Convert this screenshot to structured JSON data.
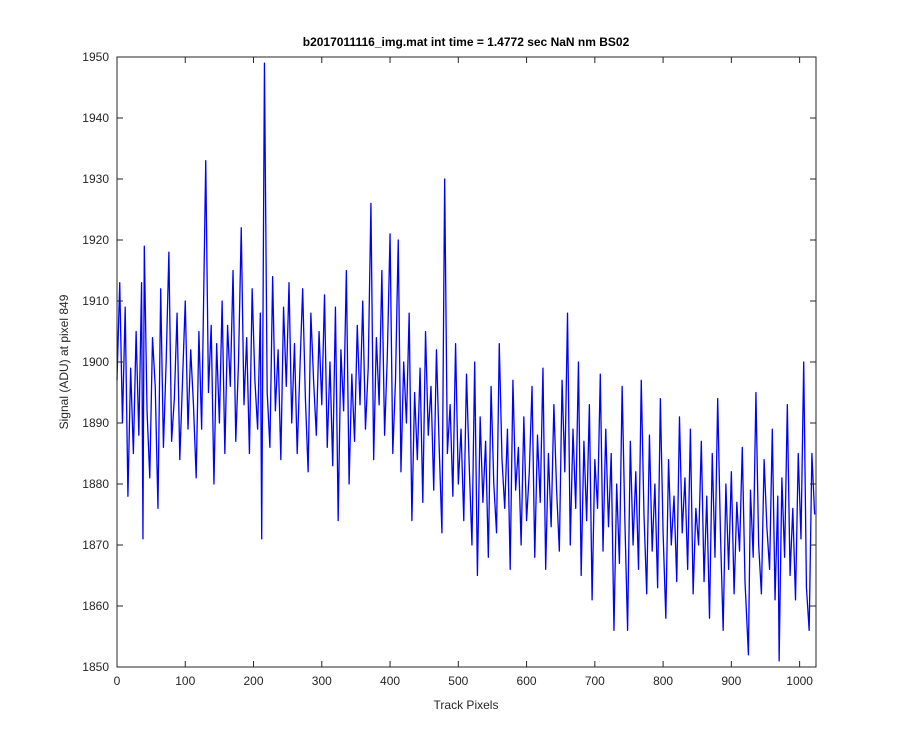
{
  "chart_data": {
    "type": "line",
    "title": "b2017011116_img.mat int time = 1.4772 sec  NaN nm BS02",
    "xlabel": "Track Pixels",
    "ylabel": "Signal (ADU) at pixel 849",
    "xlim": [
      0,
      1024
    ],
    "ylim": [
      1850,
      1950
    ],
    "xticks": [
      0,
      100,
      200,
      300,
      400,
      500,
      600,
      700,
      800,
      900,
      1000
    ],
    "yticks": [
      1850,
      1860,
      1870,
      1880,
      1890,
      1900,
      1910,
      1920,
      1930,
      1940,
      1950
    ],
    "grid": false,
    "x": [
      0,
      4,
      8,
      12,
      16,
      20,
      24,
      28,
      32,
      36,
      38,
      40,
      44,
      48,
      52,
      56,
      60,
      64,
      68,
      72,
      76,
      80,
      84,
      88,
      92,
      96,
      100,
      104,
      108,
      112,
      116,
      120,
      124,
      130,
      134,
      138,
      142,
      146,
      150,
      154,
      158,
      162,
      166,
      170,
      174,
      178,
      182,
      186,
      190,
      194,
      198,
      202,
      206,
      210,
      212,
      216,
      220,
      224,
      228,
      232,
      236,
      240,
      244,
      248,
      252,
      256,
      260,
      264,
      268,
      272,
      276,
      280,
      284,
      288,
      292,
      296,
      300,
      304,
      308,
      312,
      316,
      320,
      324,
      328,
      332,
      336,
      340,
      344,
      348,
      352,
      356,
      360,
      364,
      368,
      372,
      376,
      380,
      384,
      388,
      392,
      396,
      400,
      404,
      408,
      412,
      416,
      420,
      424,
      428,
      432,
      436,
      440,
      444,
      448,
      452,
      456,
      460,
      464,
      468,
      472,
      476,
      480,
      484,
      488,
      492,
      496,
      500,
      504,
      508,
      512,
      516,
      520,
      524,
      528,
      532,
      536,
      540,
      544,
      548,
      552,
      556,
      560,
      564,
      568,
      572,
      576,
      580,
      584,
      588,
      592,
      596,
      600,
      604,
      608,
      612,
      616,
      620,
      624,
      628,
      632,
      636,
      640,
      644,
      648,
      652,
      656,
      660,
      664,
      668,
      672,
      676,
      680,
      684,
      688,
      692,
      696,
      700,
      704,
      708,
      712,
      716,
      720,
      724,
      728,
      732,
      736,
      740,
      744,
      748,
      752,
      756,
      760,
      764,
      768,
      772,
      776,
      780,
      784,
      788,
      792,
      796,
      800,
      804,
      808,
      812,
      816,
      820,
      824,
      828,
      832,
      836,
      840,
      844,
      848,
      852,
      856,
      860,
      864,
      868,
      872,
      876,
      880,
      884,
      888,
      892,
      896,
      900,
      904,
      908,
      912,
      916,
      920,
      925,
      928,
      932,
      936,
      940,
      944,
      948,
      952,
      956,
      960,
      964,
      968,
      970,
      974,
      978,
      982,
      986,
      990,
      994,
      998,
      1002,
      1006,
      1010,
      1014,
      1018,
      1022
    ],
    "series": [
      {
        "color": "#0000ff",
        "values": [
          1897,
          1913,
          1890,
          1909,
          1878,
          1899,
          1885,
          1905,
          1888,
          1913,
          1871,
          1919,
          1892,
          1881,
          1904,
          1896,
          1876,
          1912,
          1886,
          1900,
          1918,
          1887,
          1894,
          1908,
          1884,
          1897,
          1910,
          1889,
          1902,
          1893,
          1881,
          1905,
          1889,
          1933,
          1895,
          1906,
          1880,
          1903,
          1890,
          1910,
          1885,
          1906,
          1896,
          1915,
          1887,
          1900,
          1922,
          1893,
          1904,
          1885,
          1912,
          1897,
          1889,
          1908,
          1871,
          1949,
          1895,
          1886,
          1914,
          1892,
          1902,
          1884,
          1909,
          1896,
          1913,
          1890,
          1903,
          1885,
          1899,
          1912,
          1894,
          1882,
          1908,
          1897,
          1888,
          1905,
          1893,
          1911,
          1886,
          1900,
          1883,
          1909,
          1874,
          1902,
          1892,
          1915,
          1880,
          1898,
          1887,
          1906,
          1893,
          1910,
          1889,
          1899,
          1926,
          1884,
          1904,
          1893,
          1915,
          1888,
          1901,
          1921,
          1885,
          1897,
          1920,
          1882,
          1900,
          1890,
          1908,
          1874,
          1895,
          1884,
          1899,
          1877,
          1905,
          1888,
          1896,
          1879,
          1902,
          1886,
          1872,
          1930,
          1885,
          1893,
          1878,
          1903,
          1880,
          1889,
          1874,
          1898,
          1883,
          1870,
          1900,
          1865,
          1891,
          1877,
          1887,
          1868,
          1896,
          1880,
          1872,
          1903,
          1884,
          1876,
          1889,
          1866,
          1897,
          1879,
          1886,
          1870,
          1891,
          1874,
          1882,
          1896,
          1868,
          1888,
          1877,
          1899,
          1866,
          1885,
          1873,
          1893,
          1879,
          1869,
          1897,
          1882,
          1908,
          1870,
          1889,
          1876,
          1900,
          1865,
          1887,
          1874,
          1893,
          1861,
          1884,
          1876,
          1898,
          1869,
          1889,
          1873,
          1885,
          1856,
          1880,
          1867,
          1896,
          1874,
          1856,
          1887,
          1870,
          1882,
          1866,
          1897,
          1875,
          1862,
          1888,
          1869,
          1880,
          1863,
          1894,
          1872,
          1858,
          1884,
          1870,
          1878,
          1864,
          1891,
          1872,
          1881,
          1866,
          1889,
          1862,
          1876,
          1870,
          1887,
          1864,
          1878,
          1858,
          1885,
          1868,
          1894,
          1872,
          1856,
          1880,
          1866,
          1882,
          1862,
          1877,
          1869,
          1886,
          1864,
          1852,
          1879,
          1868,
          1895,
          1870,
          1862,
          1884,
          1873,
          1866,
          1889,
          1861,
          1878,
          1851,
          1881,
          1868,
          1893,
          1865,
          1876,
          1861,
          1885,
          1871,
          1900,
          1863,
          1856,
          1885,
          1875
        ]
      }
    ]
  }
}
